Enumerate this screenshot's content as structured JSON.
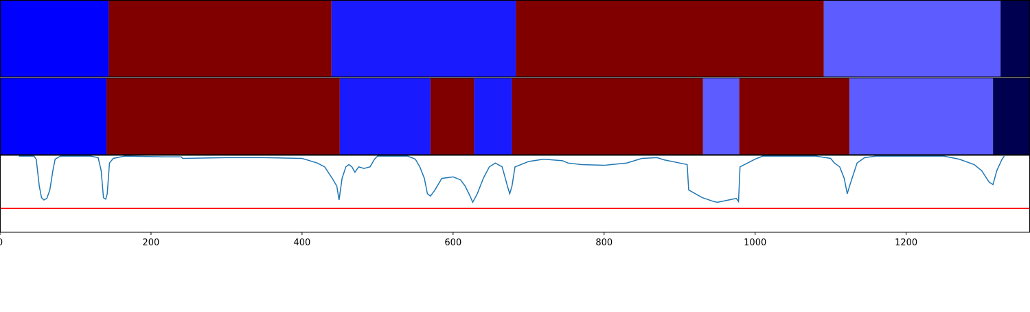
{
  "chart_data": [
    {
      "type": "segments",
      "xlim": [
        0,
        1364
      ],
      "rows": [
        {
          "segments": [
            {
              "start": 0,
              "end": 144,
              "color": "#0000ff"
            },
            {
              "start": 144,
              "end": 439,
              "color": "#800000"
            },
            {
              "start": 439,
              "end": 683,
              "color": "#1a1aff"
            },
            {
              "start": 683,
              "end": 1091,
              "color": "#800000"
            },
            {
              "start": 1091,
              "end": 1325,
              "color": "#5c5cff"
            },
            {
              "start": 1325,
              "end": 1364,
              "color": "#000050"
            }
          ]
        },
        {
          "segments": [
            {
              "start": 0,
              "end": 141,
              "color": "#0000ff"
            },
            {
              "start": 141,
              "end": 450,
              "color": "#800000"
            },
            {
              "start": 450,
              "end": 570,
              "color": "#1a1aff"
            },
            {
              "start": 570,
              "end": 628,
              "color": "#800000"
            },
            {
              "start": 628,
              "end": 678,
              "color": "#1a1aff"
            },
            {
              "start": 678,
              "end": 931,
              "color": "#800000"
            },
            {
              "start": 931,
              "end": 979,
              "color": "#5c5cff"
            },
            {
              "start": 979,
              "end": 1125,
              "color": "#800000"
            },
            {
              "start": 1125,
              "end": 1315,
              "color": "#5c5cff"
            },
            {
              "start": 1315,
              "end": 1364,
              "color": "#000050"
            }
          ]
        }
      ]
    },
    {
      "type": "line",
      "xlim": [
        0,
        1364
      ],
      "ylim": [
        0,
        1
      ],
      "xticks": [
        0,
        200,
        400,
        600,
        800,
        1000,
        1200
      ],
      "threshold": 0.31,
      "threshold_color": "#ff0000",
      "series": [
        {
          "color": "#1f77b4",
          "x": [
            25,
            45,
            48,
            52,
            55,
            58,
            62,
            66,
            70,
            73,
            80,
            120,
            130,
            134,
            137,
            140,
            142,
            145,
            150,
            165,
            220,
            240,
            242,
            300,
            350,
            400,
            410,
            420,
            430,
            440,
            446,
            449,
            453,
            458,
            462,
            466,
            470,
            475,
            482,
            490,
            496,
            500,
            540,
            550,
            556,
            562,
            566,
            570,
            576,
            585,
            600,
            610,
            616,
            622,
            626,
            632,
            640,
            648,
            656,
            665,
            672,
            675,
            678,
            682,
            690,
            700,
            720,
            745,
            752,
            770,
            800,
            830,
            850,
            870,
            880,
            900,
            910,
            912,
            930,
            945,
            950,
            965,
            975,
            978,
            980,
            1000,
            1010,
            1060,
            1080,
            1100,
            1105,
            1112,
            1118,
            1122,
            1125,
            1130,
            1135,
            1145,
            1160,
            1250,
            1270,
            1290,
            1300,
            1310,
            1315,
            1320,
            1327,
            1330
          ],
          "values": [
            0.99,
            0.99,
            0.95,
            0.6,
            0.45,
            0.42,
            0.44,
            0.55,
            0.8,
            0.95,
            0.99,
            0.99,
            0.97,
            0.8,
            0.45,
            0.43,
            0.5,
            0.9,
            0.96,
            0.99,
            0.98,
            0.98,
            0.96,
            0.97,
            0.97,
            0.96,
            0.93,
            0.9,
            0.85,
            0.7,
            0.6,
            0.42,
            0.7,
            0.85,
            0.88,
            0.85,
            0.78,
            0.85,
            0.83,
            0.85,
            0.95,
            0.99,
            0.99,
            0.95,
            0.85,
            0.7,
            0.5,
            0.47,
            0.55,
            0.7,
            0.72,
            0.68,
            0.6,
            0.48,
            0.39,
            0.5,
            0.7,
            0.85,
            0.9,
            0.85,
            0.6,
            0.5,
            0.6,
            0.85,
            0.88,
            0.92,
            0.95,
            0.93,
            0.9,
            0.88,
            0.87,
            0.9,
            0.96,
            0.97,
            0.94,
            0.9,
            0.88,
            0.55,
            0.45,
            0.4,
            0.39,
            0.42,
            0.44,
            0.4,
            0.85,
            0.95,
            0.99,
            0.99,
            0.99,
            0.96,
            0.9,
            0.85,
            0.7,
            0.5,
            0.6,
            0.75,
            0.9,
            0.97,
            0.99,
            0.99,
            0.95,
            0.88,
            0.8,
            0.65,
            0.62,
            0.8,
            0.95,
            0.99
          ]
        }
      ]
    }
  ]
}
